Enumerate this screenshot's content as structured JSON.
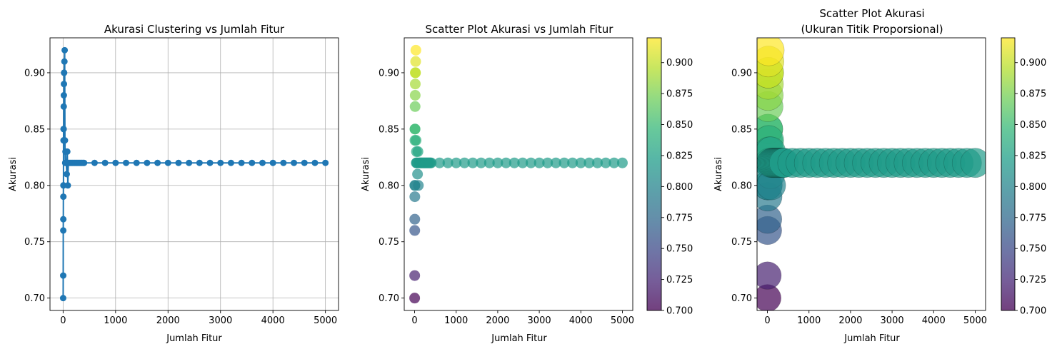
{
  "palette": {
    "line_color": "#1f77b4",
    "grid_color": "#b0b0b0",
    "colormap": "viridis",
    "viridis_stops": [
      "#440154",
      "#482878",
      "#3e4989",
      "#31688e",
      "#26828e",
      "#1f9e89",
      "#35b779",
      "#6ece58",
      "#b5de2b",
      "#fde725"
    ]
  },
  "chart_data": [
    {
      "type": "line",
      "title": "Akurasi Clustering vs Jumlah Fitur",
      "xlabel": "Jumlah Fitur",
      "ylabel": "Akurasi",
      "xlim": [
        -250,
        5250
      ],
      "ylim": [
        0.689,
        0.931
      ],
      "xticks": [
        0,
        1000,
        2000,
        3000,
        4000,
        5000
      ],
      "yticks": [
        0.7,
        0.75,
        0.8,
        0.85,
        0.9
      ],
      "xtick_labels": [
        "0",
        "1000",
        "2000",
        "3000",
        "4000",
        "5000"
      ],
      "ytick_labels": [
        "0.70",
        "0.75",
        "0.80",
        "0.85",
        "0.90"
      ],
      "grid": true,
      "markers": true,
      "series": [
        {
          "x": [
            1,
            2,
            3,
            4,
            5,
            6,
            7,
            8,
            9,
            10,
            12,
            14,
            16,
            18,
            20,
            25,
            30,
            35,
            40,
            45,
            50,
            60,
            70,
            80,
            90,
            100,
            120,
            140,
            160,
            180,
            200,
            220,
            240,
            260,
            280,
            300,
            320,
            340,
            360,
            380,
            400,
            600,
            800,
            1000,
            1200,
            1400,
            1600,
            1800,
            2000,
            2200,
            2400,
            2600,
            2800,
            3000,
            3200,
            3400,
            3600,
            3800,
            4000,
            4200,
            4400,
            4600,
            4800,
            5000
          ],
          "y": [
            0.7,
            0.72,
            0.76,
            0.77,
            0.79,
            0.8,
            0.8,
            0.84,
            0.85,
            0.85,
            0.87,
            0.88,
            0.89,
            0.9,
            0.9,
            0.91,
            0.92,
            0.84,
            0.82,
            0.83,
            0.82,
            0.82,
            0.81,
            0.83,
            0.8,
            0.82,
            0.82,
            0.82,
            0.82,
            0.82,
            0.82,
            0.82,
            0.82,
            0.82,
            0.82,
            0.82,
            0.82,
            0.82,
            0.82,
            0.82,
            0.82,
            0.82,
            0.82,
            0.82,
            0.82,
            0.82,
            0.82,
            0.82,
            0.82,
            0.82,
            0.82,
            0.82,
            0.82,
            0.82,
            0.82,
            0.82,
            0.82,
            0.82,
            0.82,
            0.82,
            0.82,
            0.82,
            0.82,
            0.82
          ]
        }
      ]
    },
    {
      "type": "scatter",
      "title": "Scatter Plot Akurasi vs Jumlah Fitur",
      "xlabel": "Jumlah Fitur",
      "ylabel": "Akurasi",
      "xlim": [
        -250,
        5250
      ],
      "ylim": [
        0.689,
        0.931
      ],
      "xticks": [
        0,
        1000,
        2000,
        3000,
        4000,
        5000
      ],
      "yticks": [
        0.7,
        0.75,
        0.8,
        0.85,
        0.9
      ],
      "xtick_labels": [
        "0",
        "1000",
        "2000",
        "3000",
        "4000",
        "5000"
      ],
      "ytick_labels": [
        "0.70",
        "0.75",
        "0.80",
        "0.85",
        "0.90"
      ],
      "grid": false,
      "color_by": "y",
      "point_size": "constant",
      "colorbar": {
        "range": [
          0.7,
          0.92
        ],
        "ticks": [
          0.7,
          0.725,
          0.75,
          0.775,
          0.8,
          0.825,
          0.85,
          0.875,
          0.9
        ],
        "tick_labels": [
          "0.700",
          "0.725",
          "0.750",
          "0.775",
          "0.800",
          "0.825",
          "0.850",
          "0.875",
          "0.900"
        ]
      }
    },
    {
      "type": "scatter",
      "title_lines": [
        "Scatter Plot Akurasi",
        "(Ukuran Titik Proporsional)"
      ],
      "xlabel": "Jumlah Fitur",
      "ylabel": "Akurasi",
      "xlim": [
        -250,
        5250
      ],
      "ylim": [
        0.689,
        0.931
      ],
      "xticks": [
        0,
        1000,
        2000,
        3000,
        4000,
        5000
      ],
      "yticks": [
        0.7,
        0.75,
        0.8,
        0.85,
        0.9
      ],
      "xtick_labels": [
        "0",
        "1000",
        "2000",
        "3000",
        "4000",
        "5000"
      ],
      "ytick_labels": [
        "0.70",
        "0.75",
        "0.80",
        "0.85",
        "0.90"
      ],
      "grid": false,
      "color_by": "y",
      "point_size": "proportional to Akurasi",
      "colorbar": {
        "range": [
          0.7,
          0.92
        ],
        "ticks": [
          0.7,
          0.725,
          0.75,
          0.775,
          0.8,
          0.825,
          0.85,
          0.875,
          0.9
        ],
        "tick_labels": [
          "0.700",
          "0.725",
          "0.750",
          "0.775",
          "0.800",
          "0.825",
          "0.850",
          "0.875",
          "0.900"
        ]
      }
    }
  ]
}
